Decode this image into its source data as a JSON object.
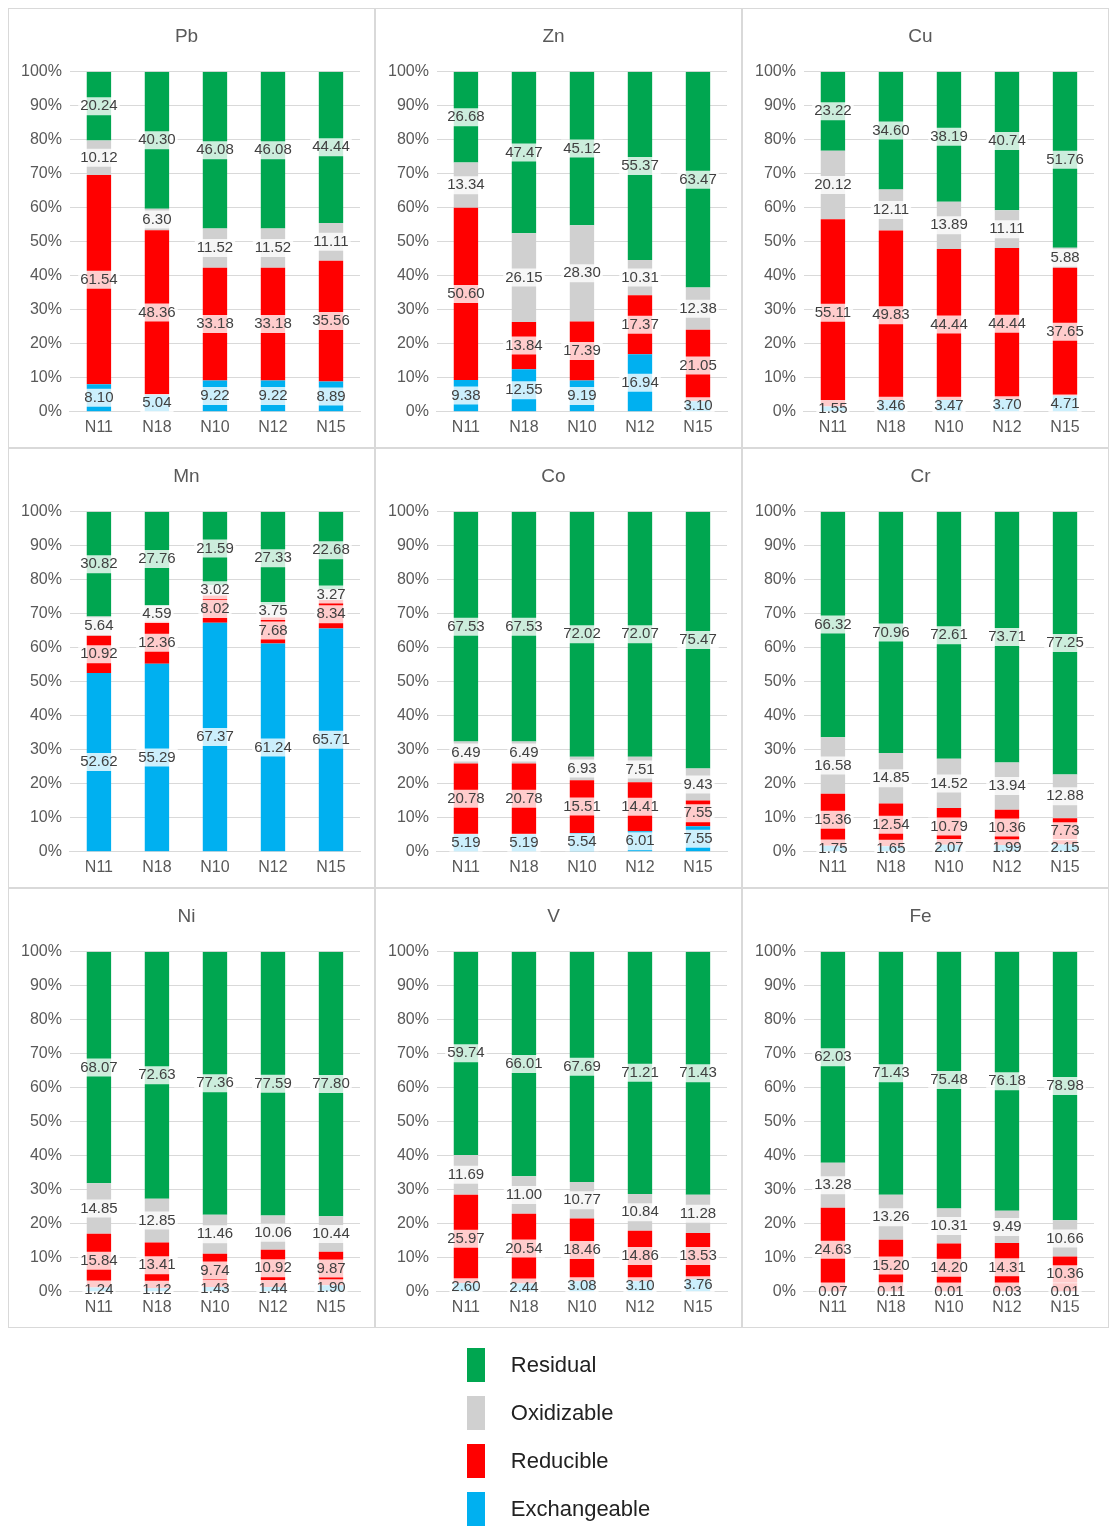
{
  "chart_data": [
    {
      "type": "bar",
      "title": "Pb",
      "categories": [
        "N11",
        "N18",
        "N10",
        "N12",
        "N15"
      ],
      "stacked": true,
      "grid": "y",
      "ylim": [
        0,
        100
      ],
      "yticks": [
        {
          "value": 0,
          "label": "0%"
        },
        {
          "value": 10,
          "label": "10%"
        },
        {
          "value": 20,
          "label": "20%"
        },
        {
          "value": 30,
          "label": "30%"
        },
        {
          "value": 40,
          "label": "40%"
        },
        {
          "value": 50,
          "label": "50%"
        },
        {
          "value": 60,
          "label": "60%"
        },
        {
          "value": 70,
          "label": "70%"
        },
        {
          "value": 80,
          "label": "80%"
        },
        {
          "value": 90,
          "label": "90%"
        },
        {
          "value": 100,
          "label": "100%"
        }
      ],
      "series": [
        {
          "color": "#00b0f0",
          "values": [
            8.1,
            5.04,
            9.22,
            9.22,
            8.89
          ],
          "value_labels": [
            "8.10",
            "5.04",
            "9.22",
            "9.22",
            "8.89"
          ]
        },
        {
          "color": "#ff0000",
          "values": [
            61.54,
            48.36,
            33.18,
            33.18,
            35.56
          ],
          "value_labels": [
            "61.54",
            "48.36",
            "33.18",
            "33.18",
            "35.56"
          ]
        },
        {
          "color": "#d0d0d0",
          "values": [
            10.12,
            6.3,
            11.52,
            11.52,
            11.11
          ],
          "value_labels": [
            "10.12",
            "6.30",
            "11.52",
            "11.52",
            "11.11"
          ]
        },
        {
          "color": "#00a650",
          "values": [
            20.24,
            40.3,
            46.08,
            46.08,
            44.44
          ],
          "value_labels": [
            "20.24",
            "40.30",
            "46.08",
            "46.08",
            "44.44"
          ]
        }
      ]
    },
    {
      "type": "bar",
      "title": "Zn",
      "categories": [
        "N11",
        "N18",
        "N10",
        "N12",
        "N15"
      ],
      "stacked": true,
      "grid": "y",
      "ylim": [
        0,
        100
      ],
      "yticks": [
        {
          "value": 0,
          "label": "0%"
        },
        {
          "value": 10,
          "label": "10%"
        },
        {
          "value": 20,
          "label": "20%"
        },
        {
          "value": 30,
          "label": "30%"
        },
        {
          "value": 40,
          "label": "40%"
        },
        {
          "value": 50,
          "label": "50%"
        },
        {
          "value": 60,
          "label": "60%"
        },
        {
          "value": 70,
          "label": "70%"
        },
        {
          "value": 80,
          "label": "80%"
        },
        {
          "value": 90,
          "label": "90%"
        },
        {
          "value": 100,
          "label": "100%"
        }
      ],
      "series": [
        {
          "color": "#00b0f0",
          "values": [
            9.38,
            12.55,
            9.19,
            16.94,
            3.1
          ],
          "value_labels": [
            "9.38",
            "12.55",
            "9.19",
            "16.94",
            "3.10"
          ]
        },
        {
          "color": "#ff0000",
          "values": [
            50.6,
            13.84,
            17.39,
            17.37,
            21.05
          ],
          "value_labels": [
            "50.60",
            "13.84",
            "17.39",
            "17.37",
            "21.05"
          ]
        },
        {
          "color": "#d0d0d0",
          "values": [
            13.34,
            26.15,
            28.3,
            10.31,
            12.38
          ],
          "value_labels": [
            "13.34",
            "26.15",
            "28.30",
            "10.31",
            "12.38"
          ]
        },
        {
          "color": "#00a650",
          "values": [
            26.68,
            47.47,
            45.12,
            55.37,
            63.47
          ],
          "value_labels": [
            "26.68",
            "47.47",
            "45.12",
            "55.37",
            "63.47"
          ]
        }
      ]
    },
    {
      "type": "bar",
      "title": "Cu",
      "categories": [
        "N11",
        "N18",
        "N10",
        "N12",
        "N15"
      ],
      "stacked": true,
      "grid": "y",
      "ylim": [
        0,
        100
      ],
      "yticks": [
        {
          "value": 0,
          "label": "0%"
        },
        {
          "value": 10,
          "label": "10%"
        },
        {
          "value": 20,
          "label": "20%"
        },
        {
          "value": 30,
          "label": "30%"
        },
        {
          "value": 40,
          "label": "40%"
        },
        {
          "value": 50,
          "label": "50%"
        },
        {
          "value": 60,
          "label": "60%"
        },
        {
          "value": 70,
          "label": "70%"
        },
        {
          "value": 80,
          "label": "80%"
        },
        {
          "value": 90,
          "label": "90%"
        },
        {
          "value": 100,
          "label": "100%"
        }
      ],
      "series": [
        {
          "color": "#00b0f0",
          "values": [
            1.55,
            3.46,
            3.47,
            3.7,
            4.71
          ],
          "value_labels": [
            "1.55",
            "3.46",
            "3.47",
            "3.70",
            "4.71"
          ]
        },
        {
          "color": "#ff0000",
          "values": [
            55.11,
            49.83,
            44.44,
            44.44,
            37.65
          ],
          "value_labels": [
            "55.11",
            "49.83",
            "44.44",
            "44.44",
            "37.65"
          ]
        },
        {
          "color": "#d0d0d0",
          "values": [
            20.12,
            12.11,
            13.89,
            11.11,
            5.88
          ],
          "value_labels": [
            "20.12",
            "12.11",
            "13.89",
            "11.11",
            "5.88"
          ]
        },
        {
          "color": "#00a650",
          "values": [
            23.22,
            34.6,
            38.19,
            40.74,
            51.76
          ],
          "value_labels": [
            "23.22",
            "34.60",
            "38.19",
            "40.74",
            "51.76"
          ]
        }
      ]
    },
    {
      "type": "bar",
      "title": "Mn",
      "categories": [
        "N11",
        "N18",
        "N10",
        "N12",
        "N15"
      ],
      "stacked": true,
      "grid": "y",
      "ylim": [
        0,
        100
      ],
      "yticks": [
        {
          "value": 0,
          "label": "0%"
        },
        {
          "value": 10,
          "label": "10%"
        },
        {
          "value": 20,
          "label": "20%"
        },
        {
          "value": 30,
          "label": "30%"
        },
        {
          "value": 40,
          "label": "40%"
        },
        {
          "value": 50,
          "label": "50%"
        },
        {
          "value": 60,
          "label": "60%"
        },
        {
          "value": 70,
          "label": "70%"
        },
        {
          "value": 80,
          "label": "80%"
        },
        {
          "value": 90,
          "label": "90%"
        },
        {
          "value": 100,
          "label": "100%"
        }
      ],
      "series": [
        {
          "color": "#00b0f0",
          "values": [
            52.62,
            55.29,
            67.37,
            61.24,
            65.71
          ],
          "value_labels": [
            "52.62",
            "55.29",
            "67.37",
            "61.24",
            "65.71"
          ]
        },
        {
          "color": "#ff0000",
          "values": [
            10.92,
            12.36,
            8.02,
            7.68,
            8.34
          ],
          "value_labels": [
            "10.92",
            "12.36",
            "8.02",
            "7.68",
            "8.34"
          ]
        },
        {
          "color": "#d0d0d0",
          "values": [
            5.64,
            4.59,
            3.02,
            3.75,
            3.27
          ],
          "value_labels": [
            "5.64",
            "4.59",
            "3.02",
            "3.75",
            "3.27"
          ]
        },
        {
          "color": "#00a650",
          "values": [
            30.82,
            27.76,
            21.59,
            27.33,
            22.68
          ],
          "value_labels": [
            "30.82",
            "27.76",
            "21.59",
            "27.33",
            "22.68"
          ]
        }
      ]
    },
    {
      "type": "bar",
      "title": "Co",
      "categories": [
        "N11",
        "N18",
        "N10",
        "N12",
        "N15"
      ],
      "stacked": true,
      "grid": "y",
      "ylim": [
        0,
        100
      ],
      "yticks": [
        {
          "value": 0,
          "label": "0%"
        },
        {
          "value": 10,
          "label": "10%"
        },
        {
          "value": 20,
          "label": "20%"
        },
        {
          "value": 30,
          "label": "30%"
        },
        {
          "value": 40,
          "label": "40%"
        },
        {
          "value": 50,
          "label": "50%"
        },
        {
          "value": 60,
          "label": "60%"
        },
        {
          "value": 70,
          "label": "70%"
        },
        {
          "value": 80,
          "label": "80%"
        },
        {
          "value": 90,
          "label": "90%"
        },
        {
          "value": 100,
          "label": "100%"
        }
      ],
      "series": [
        {
          "color": "#00b0f0",
          "values": [
            5.19,
            5.19,
            5.54,
            6.01,
            7.55
          ],
          "value_labels": [
            "5.19",
            "5.19",
            "5.54",
            "6.01",
            "7.55"
          ]
        },
        {
          "color": "#ff0000",
          "values": [
            20.78,
            20.78,
            15.51,
            14.41,
            7.55
          ],
          "value_labels": [
            "20.78",
            "20.78",
            "15.51",
            "14.41",
            "7.55"
          ]
        },
        {
          "color": "#d0d0d0",
          "values": [
            6.49,
            6.49,
            6.93,
            7.51,
            9.43
          ],
          "value_labels": [
            "6.49",
            "6.49",
            "6.93",
            "7.51",
            "9.43"
          ]
        },
        {
          "color": "#00a650",
          "values": [
            67.53,
            67.53,
            72.02,
            72.07,
            75.47
          ],
          "value_labels": [
            "67.53",
            "67.53",
            "72.02",
            "72.07",
            "75.47"
          ]
        }
      ]
    },
    {
      "type": "bar",
      "title": "Cr",
      "categories": [
        "N11",
        "N18",
        "N10",
        "N12",
        "N15"
      ],
      "stacked": true,
      "grid": "y",
      "ylim": [
        0,
        100
      ],
      "yticks": [
        {
          "value": 0,
          "label": "0%"
        },
        {
          "value": 10,
          "label": "10%"
        },
        {
          "value": 20,
          "label": "20%"
        },
        {
          "value": 30,
          "label": "30%"
        },
        {
          "value": 40,
          "label": "40%"
        },
        {
          "value": 50,
          "label": "50%"
        },
        {
          "value": 60,
          "label": "60%"
        },
        {
          "value": 70,
          "label": "70%"
        },
        {
          "value": 80,
          "label": "80%"
        },
        {
          "value": 90,
          "label": "90%"
        },
        {
          "value": 100,
          "label": "100%"
        }
      ],
      "series": [
        {
          "color": "#00b0f0",
          "values": [
            1.75,
            1.65,
            2.07,
            1.99,
            2.15
          ],
          "value_labels": [
            "1.75",
            "1.65",
            "2.07",
            "1.99",
            "2.15"
          ]
        },
        {
          "color": "#ff0000",
          "values": [
            15.36,
            12.54,
            10.79,
            10.36,
            7.73
          ],
          "value_labels": [
            "15.36",
            "12.54",
            "10.79",
            "10.36",
            "7.73"
          ]
        },
        {
          "color": "#d0d0d0",
          "values": [
            16.58,
            14.85,
            14.52,
            13.94,
            12.88
          ],
          "value_labels": [
            "16.58",
            "14.85",
            "14.52",
            "13.94",
            "12.88"
          ]
        },
        {
          "color": "#00a650",
          "values": [
            66.32,
            70.96,
            72.61,
            73.71,
            77.25
          ],
          "value_labels": [
            "66.32",
            "70.96",
            "72.61",
            "73.71",
            "77.25"
          ]
        }
      ]
    },
    {
      "type": "bar",
      "title": "Ni",
      "categories": [
        "N11",
        "N18",
        "N10",
        "N12",
        "N15"
      ],
      "stacked": true,
      "grid": "y",
      "ylim": [
        0,
        100
      ],
      "yticks": [
        {
          "value": 0,
          "label": "0%"
        },
        {
          "value": 10,
          "label": "10%"
        },
        {
          "value": 20,
          "label": "20%"
        },
        {
          "value": 30,
          "label": "30%"
        },
        {
          "value": 40,
          "label": "40%"
        },
        {
          "value": 50,
          "label": "50%"
        },
        {
          "value": 60,
          "label": "60%"
        },
        {
          "value": 70,
          "label": "70%"
        },
        {
          "value": 80,
          "label": "80%"
        },
        {
          "value": 90,
          "label": "90%"
        },
        {
          "value": 100,
          "label": "100%"
        }
      ],
      "series": [
        {
          "color": "#00b0f0",
          "values": [
            1.24,
            1.12,
            1.43,
            1.44,
            1.9
          ],
          "value_labels": [
            "1.24",
            "1.12",
            "1.43",
            "1.44",
            "1.90"
          ]
        },
        {
          "color": "#ff0000",
          "values": [
            15.84,
            13.41,
            9.74,
            10.92,
            9.87
          ],
          "value_labels": [
            "15.84",
            "13.41",
            "9.74",
            "10.92",
            "9.87"
          ]
        },
        {
          "color": "#d0d0d0",
          "values": [
            14.85,
            12.85,
            11.46,
            10.06,
            10.44
          ],
          "value_labels": [
            "14.85",
            "12.85",
            "11.46",
            "10.06",
            "10.44"
          ]
        },
        {
          "color": "#00a650",
          "values": [
            68.07,
            72.63,
            77.36,
            77.59,
            77.8
          ],
          "value_labels": [
            "68.07",
            "72.63",
            "77.36",
            "77.59",
            "77.80"
          ]
        }
      ]
    },
    {
      "type": "bar",
      "title": "V",
      "categories": [
        "N11",
        "N18",
        "N10",
        "N12",
        "N15"
      ],
      "stacked": true,
      "grid": "y",
      "ylim": [
        0,
        100
      ],
      "yticks": [
        {
          "value": 0,
          "label": "0%"
        },
        {
          "value": 10,
          "label": "10%"
        },
        {
          "value": 20,
          "label": "20%"
        },
        {
          "value": 30,
          "label": "30%"
        },
        {
          "value": 40,
          "label": "40%"
        },
        {
          "value": 50,
          "label": "50%"
        },
        {
          "value": 60,
          "label": "60%"
        },
        {
          "value": 70,
          "label": "70%"
        },
        {
          "value": 80,
          "label": "80%"
        },
        {
          "value": 90,
          "label": "90%"
        },
        {
          "value": 100,
          "label": "100%"
        }
      ],
      "series": [
        {
          "color": "#00b0f0",
          "values": [
            2.6,
            2.44,
            3.08,
            3.1,
            3.76
          ],
          "value_labels": [
            "2.60",
            "2.44",
            "3.08",
            "3.10",
            "3.76"
          ]
        },
        {
          "color": "#ff0000",
          "values": [
            25.97,
            20.54,
            18.46,
            14.86,
            13.53
          ],
          "value_labels": [
            "25.97",
            "20.54",
            "18.46",
            "14.86",
            "13.53"
          ]
        },
        {
          "color": "#d0d0d0",
          "values": [
            11.69,
            11.0,
            10.77,
            10.84,
            11.28
          ],
          "value_labels": [
            "11.69",
            "11.00",
            "10.77",
            "10.84",
            "11.28"
          ]
        },
        {
          "color": "#00a650",
          "values": [
            59.74,
            66.01,
            67.69,
            71.21,
            71.43
          ],
          "value_labels": [
            "59.74",
            "66.01",
            "67.69",
            "71.21",
            "71.43"
          ]
        }
      ]
    },
    {
      "type": "bar",
      "title": "Fe",
      "categories": [
        "N11",
        "N18",
        "N10",
        "N12",
        "N15"
      ],
      "stacked": true,
      "grid": "y",
      "legend": "bottom",
      "ylim": [
        0,
        100
      ],
      "yticks": [
        {
          "value": 0,
          "label": "0%"
        },
        {
          "value": 10,
          "label": "10%"
        },
        {
          "value": 20,
          "label": "20%"
        },
        {
          "value": 30,
          "label": "30%"
        },
        {
          "value": 40,
          "label": "40%"
        },
        {
          "value": 50,
          "label": "50%"
        },
        {
          "value": 60,
          "label": "60%"
        },
        {
          "value": 70,
          "label": "70%"
        },
        {
          "value": 80,
          "label": "80%"
        },
        {
          "value": 90,
          "label": "90%"
        },
        {
          "value": 100,
          "label": "100%"
        }
      ],
      "series": [
        {
          "name": "Exchangeable",
          "color": "#00b0f0",
          "values": [
            0.07,
            0.11,
            0.01,
            0.03,
            0.01
          ],
          "value_labels": [
            "0.07",
            "0.11",
            "0.01",
            "0.03",
            "0.01"
          ]
        },
        {
          "name": "Reducible",
          "color": "#ff0000",
          "values": [
            24.63,
            15.2,
            14.2,
            14.31,
            10.36
          ],
          "value_labels": [
            "24.63",
            "15.20",
            "14.20",
            "14.31",
            "10.36"
          ]
        },
        {
          "name": "Oxidizable",
          "color": "#d0d0d0",
          "values": [
            13.28,
            13.26,
            10.31,
            9.49,
            10.66
          ],
          "value_labels": [
            "13.28",
            "13.26",
            "10.31",
            "9.49",
            "10.66"
          ]
        },
        {
          "name": "Residual",
          "color": "#00a650",
          "values": [
            62.03,
            71.43,
            75.48,
            76.18,
            78.98
          ],
          "value_labels": [
            "62.03",
            "71.43",
            "75.48",
            "76.18",
            "78.98"
          ]
        }
      ]
    }
  ]
}
